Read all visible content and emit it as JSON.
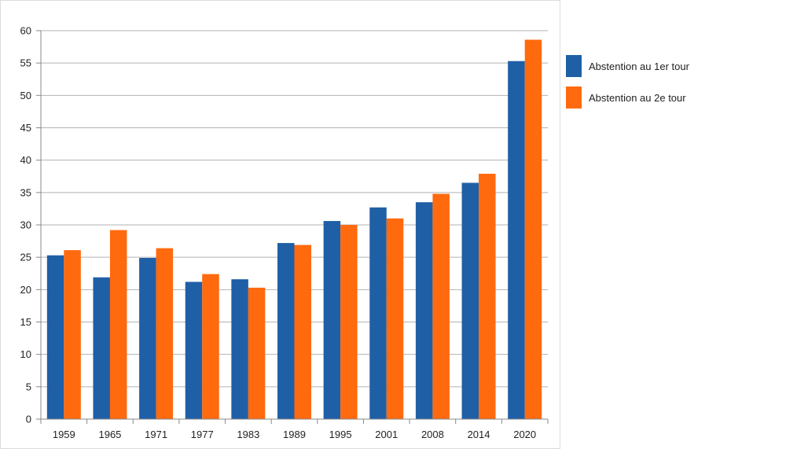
{
  "colors": {
    "series_1": "#1f5fa6",
    "series_2": "#ff6a0e",
    "grid": "#b3b3b3",
    "axis": "#888888",
    "background": "#ffffff"
  },
  "chart_data": {
    "type": "bar",
    "title": "",
    "xlabel": "",
    "ylabel": "",
    "categories": [
      "1959",
      "1965",
      "1971",
      "1977",
      "1983",
      "1989",
      "1995",
      "2001",
      "2008",
      "2014",
      "2020"
    ],
    "series": [
      {
        "name": "Abstention au 1er tour",
        "values": [
          25.3,
          21.9,
          24.9,
          21.2,
          21.6,
          27.2,
          30.6,
          32.7,
          33.5,
          36.5,
          55.3
        ]
      },
      {
        "name": "Abstention au 2e tour",
        "values": [
          26.1,
          29.2,
          26.4,
          22.4,
          20.3,
          26.9,
          30.0,
          31.0,
          34.8,
          37.9,
          58.6
        ]
      }
    ],
    "ylim": [
      0,
      60
    ],
    "yticks": [
      "0",
      "5",
      "10",
      "15",
      "20",
      "25",
      "30",
      "35",
      "40",
      "45",
      "50",
      "55",
      "60"
    ],
    "grid": true,
    "legend_position": "right"
  }
}
